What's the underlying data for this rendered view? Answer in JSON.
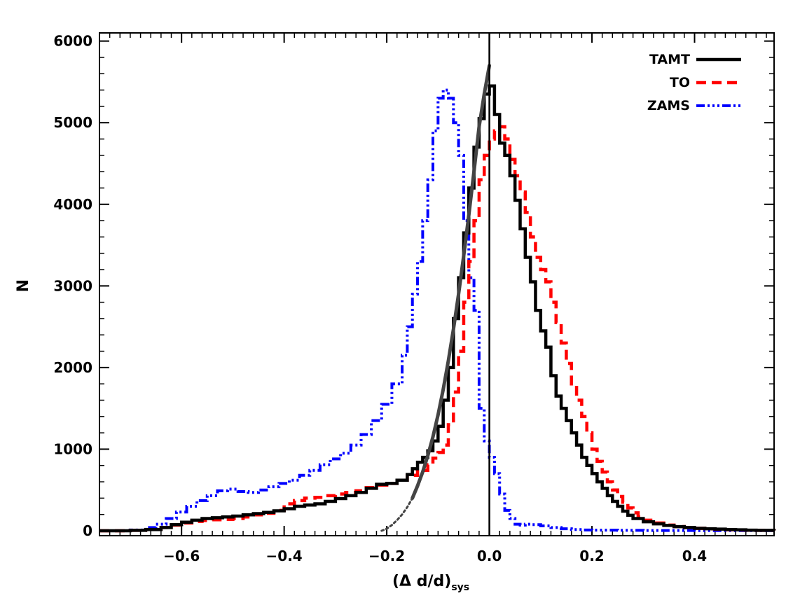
{
  "chart_data": {
    "type": "line",
    "subtype": "histogram-step",
    "xlabel": "(Δ d/d)",
    "xlabel_subscript": "sys",
    "ylabel": "N",
    "xlim": [
      -0.76,
      0.555
    ],
    "ylim": [
      -60,
      6100
    ],
    "xticks": [
      -0.6,
      -0.4,
      -0.2,
      0.0,
      0.2,
      0.4
    ],
    "xtick_labels": [
      "−0.6",
      "−0.4",
      "−0.2",
      "0.0",
      "0.2",
      "0.4"
    ],
    "yticks": [
      0,
      1000,
      2000,
      3000,
      4000,
      5000,
      6000
    ],
    "ytick_labels": [
      "0",
      "1000",
      "2000",
      "3000",
      "4000",
      "5000",
      "6000"
    ],
    "legend_position": "top-right",
    "vertical_line_x": 0.0,
    "series": [
      {
        "name": "TAMT",
        "color": "#000000",
        "style": "solid",
        "points": [
          [
            -0.76,
            0
          ],
          [
            -0.7,
            5
          ],
          [
            -0.67,
            15
          ],
          [
            -0.64,
            40
          ],
          [
            -0.62,
            75
          ],
          [
            -0.6,
            105
          ],
          [
            -0.58,
            130
          ],
          [
            -0.56,
            150
          ],
          [
            -0.54,
            160
          ],
          [
            -0.52,
            170
          ],
          [
            -0.5,
            180
          ],
          [
            -0.48,
            195
          ],
          [
            -0.46,
            210
          ],
          [
            -0.44,
            225
          ],
          [
            -0.42,
            245
          ],
          [
            -0.4,
            270
          ],
          [
            -0.38,
            300
          ],
          [
            -0.36,
            315
          ],
          [
            -0.34,
            330
          ],
          [
            -0.32,
            360
          ],
          [
            -0.3,
            395
          ],
          [
            -0.28,
            430
          ],
          [
            -0.26,
            470
          ],
          [
            -0.24,
            520
          ],
          [
            -0.22,
            570
          ],
          [
            -0.2,
            580
          ],
          [
            -0.18,
            620
          ],
          [
            -0.16,
            690
          ],
          [
            -0.15,
            760
          ],
          [
            -0.14,
            840
          ],
          [
            -0.13,
            900
          ],
          [
            -0.12,
            980
          ],
          [
            -0.11,
            1100
          ],
          [
            -0.1,
            1280
          ],
          [
            -0.09,
            1600
          ],
          [
            -0.08,
            2000
          ],
          [
            -0.07,
            2600
          ],
          [
            -0.06,
            3100
          ],
          [
            -0.05,
            3650
          ],
          [
            -0.04,
            4200
          ],
          [
            -0.03,
            4700
          ],
          [
            -0.02,
            5050
          ],
          [
            -0.01,
            5350
          ],
          [
            0.0,
            5450
          ],
          [
            0.01,
            5100
          ],
          [
            0.02,
            4750
          ],
          [
            0.03,
            4600
          ],
          [
            0.04,
            4350
          ],
          [
            0.05,
            4050
          ],
          [
            0.06,
            3700
          ],
          [
            0.07,
            3350
          ],
          [
            0.08,
            3050
          ],
          [
            0.09,
            2700
          ],
          [
            0.1,
            2450
          ],
          [
            0.11,
            2250
          ],
          [
            0.12,
            1900
          ],
          [
            0.13,
            1650
          ],
          [
            0.14,
            1500
          ],
          [
            0.15,
            1350
          ],
          [
            0.16,
            1200
          ],
          [
            0.17,
            1050
          ],
          [
            0.18,
            900
          ],
          [
            0.19,
            800
          ],
          [
            0.2,
            700
          ],
          [
            0.21,
            600
          ],
          [
            0.22,
            520
          ],
          [
            0.23,
            430
          ],
          [
            0.24,
            360
          ],
          [
            0.25,
            300
          ],
          [
            0.26,
            240
          ],
          [
            0.27,
            190
          ],
          [
            0.28,
            150
          ],
          [
            0.3,
            110
          ],
          [
            0.32,
            85
          ],
          [
            0.34,
            65
          ],
          [
            0.36,
            50
          ],
          [
            0.38,
            40
          ],
          [
            0.4,
            30
          ],
          [
            0.42,
            25
          ],
          [
            0.44,
            20
          ],
          [
            0.46,
            15
          ],
          [
            0.48,
            12
          ],
          [
            0.5,
            8
          ],
          [
            0.52,
            5
          ],
          [
            0.555,
            3
          ]
        ]
      },
      {
        "name": "TO",
        "color": "#ff0000",
        "style": "dashed",
        "points": [
          [
            -0.76,
            0
          ],
          [
            -0.7,
            5
          ],
          [
            -0.67,
            15
          ],
          [
            -0.64,
            40
          ],
          [
            -0.62,
            70
          ],
          [
            -0.6,
            95
          ],
          [
            -0.58,
            115
          ],
          [
            -0.56,
            125
          ],
          [
            -0.54,
            135
          ],
          [
            -0.52,
            140
          ],
          [
            -0.5,
            150
          ],
          [
            -0.48,
            170
          ],
          [
            -0.46,
            195
          ],
          [
            -0.44,
            215
          ],
          [
            -0.42,
            250
          ],
          [
            -0.4,
            330
          ],
          [
            -0.38,
            370
          ],
          [
            -0.36,
            400
          ],
          [
            -0.34,
            410
          ],
          [
            -0.32,
            430
          ],
          [
            -0.3,
            450
          ],
          [
            -0.28,
            470
          ],
          [
            -0.26,
            490
          ],
          [
            -0.24,
            530
          ],
          [
            -0.22,
            560
          ],
          [
            -0.2,
            580
          ],
          [
            -0.18,
            620
          ],
          [
            -0.16,
            680
          ],
          [
            -0.14,
            740
          ],
          [
            -0.12,
            810
          ],
          [
            -0.11,
            890
          ],
          [
            -0.1,
            960
          ],
          [
            -0.09,
            1050
          ],
          [
            -0.08,
            1300
          ],
          [
            -0.07,
            1700
          ],
          [
            -0.06,
            2200
          ],
          [
            -0.05,
            2800
          ],
          [
            -0.04,
            3300
          ],
          [
            -0.03,
            3800
          ],
          [
            -0.02,
            4300
          ],
          [
            -0.01,
            4600
          ],
          [
            0.0,
            4800
          ],
          [
            0.01,
            4900
          ],
          [
            0.02,
            4950
          ],
          [
            0.03,
            4800
          ],
          [
            0.04,
            4550
          ],
          [
            0.05,
            4350
          ],
          [
            0.06,
            4150
          ],
          [
            0.07,
            3900
          ],
          [
            0.08,
            3600
          ],
          [
            0.09,
            3350
          ],
          [
            0.1,
            3200
          ],
          [
            0.11,
            3050
          ],
          [
            0.12,
            2800
          ],
          [
            0.13,
            2550
          ],
          [
            0.14,
            2300
          ],
          [
            0.15,
            2050
          ],
          [
            0.16,
            1800
          ],
          [
            0.17,
            1600
          ],
          [
            0.18,
            1400
          ],
          [
            0.19,
            1200
          ],
          [
            0.2,
            1000
          ],
          [
            0.21,
            850
          ],
          [
            0.22,
            720
          ],
          [
            0.23,
            600
          ],
          [
            0.24,
            500
          ],
          [
            0.25,
            420
          ],
          [
            0.26,
            350
          ],
          [
            0.27,
            280
          ],
          [
            0.28,
            220
          ],
          [
            0.29,
            170
          ],
          [
            0.3,
            130
          ],
          [
            0.32,
            95
          ],
          [
            0.34,
            70
          ],
          [
            0.36,
            52
          ],
          [
            0.38,
            40
          ],
          [
            0.4,
            30
          ],
          [
            0.42,
            24
          ],
          [
            0.44,
            18
          ],
          [
            0.46,
            13
          ],
          [
            0.48,
            10
          ],
          [
            0.5,
            7
          ],
          [
            0.52,
            5
          ],
          [
            0.555,
            3
          ]
        ]
      },
      {
        "name": "ZAMS",
        "color": "#0000ff",
        "style": "dash-dot-dot",
        "points": [
          [
            -0.76,
            0
          ],
          [
            -0.7,
            10
          ],
          [
            -0.67,
            40
          ],
          [
            -0.65,
            80
          ],
          [
            -0.63,
            150
          ],
          [
            -0.61,
            230
          ],
          [
            -0.59,
            300
          ],
          [
            -0.57,
            370
          ],
          [
            -0.55,
            430
          ],
          [
            -0.53,
            490
          ],
          [
            -0.51,
            510
          ],
          [
            -0.49,
            480
          ],
          [
            -0.47,
            470
          ],
          [
            -0.45,
            500
          ],
          [
            -0.43,
            540
          ],
          [
            -0.41,
            580
          ],
          [
            -0.39,
            620
          ],
          [
            -0.37,
            680
          ],
          [
            -0.35,
            740
          ],
          [
            -0.33,
            810
          ],
          [
            -0.31,
            880
          ],
          [
            -0.29,
            950
          ],
          [
            -0.27,
            1050
          ],
          [
            -0.25,
            1180
          ],
          [
            -0.23,
            1350
          ],
          [
            -0.21,
            1550
          ],
          [
            -0.19,
            1800
          ],
          [
            -0.17,
            2150
          ],
          [
            -0.16,
            2500
          ],
          [
            -0.15,
            2900
          ],
          [
            -0.14,
            3300
          ],
          [
            -0.13,
            3800
          ],
          [
            -0.12,
            4300
          ],
          [
            -0.11,
            4900
          ],
          [
            -0.1,
            5300
          ],
          [
            -0.09,
            5400
          ],
          [
            -0.08,
            5300
          ],
          [
            -0.07,
            5000
          ],
          [
            -0.06,
            4600
          ],
          [
            -0.05,
            3800
          ],
          [
            -0.04,
            3100
          ],
          [
            -0.03,
            2700
          ],
          [
            -0.02,
            1500
          ],
          [
            -0.01,
            1100
          ],
          [
            0.0,
            900
          ],
          [
            0.01,
            700
          ],
          [
            0.02,
            450
          ],
          [
            0.03,
            250
          ],
          [
            0.04,
            150
          ],
          [
            0.05,
            80
          ],
          [
            0.06,
            70
          ],
          [
            0.07,
            80
          ],
          [
            0.08,
            75
          ],
          [
            0.1,
            60
          ],
          [
            0.12,
            40
          ],
          [
            0.14,
            25
          ],
          [
            0.16,
            15
          ],
          [
            0.18,
            10
          ],
          [
            0.2,
            8
          ],
          [
            0.25,
            5
          ],
          [
            0.3,
            3
          ],
          [
            0.4,
            2
          ],
          [
            0.555,
            0
          ]
        ]
      },
      {
        "name": "fit",
        "color": "#444444",
        "style": "solid-thick",
        "points": [
          [
            -0.15,
            400
          ],
          [
            -0.14,
            550
          ],
          [
            -0.13,
            720
          ],
          [
            -0.12,
            920
          ],
          [
            -0.11,
            1150
          ],
          [
            -0.1,
            1420
          ],
          [
            -0.09,
            1730
          ],
          [
            -0.08,
            2080
          ],
          [
            -0.07,
            2470
          ],
          [
            -0.06,
            2900
          ],
          [
            -0.05,
            3370
          ],
          [
            -0.04,
            3870
          ],
          [
            -0.03,
            4400
          ],
          [
            -0.02,
            4950
          ],
          [
            -0.01,
            5350
          ],
          [
            0.0,
            5700
          ]
        ]
      },
      {
        "name": "fit-extrapolation",
        "color": "#444444",
        "style": "dotted",
        "points": [
          [
            -0.21,
            0
          ],
          [
            -0.2,
            25
          ],
          [
            -0.19,
            70
          ],
          [
            -0.18,
            130
          ],
          [
            -0.17,
            200
          ],
          [
            -0.16,
            290
          ],
          [
            -0.15,
            400
          ]
        ]
      }
    ]
  },
  "legend": {
    "items": [
      {
        "label": "TAMT",
        "color": "#000000",
        "style": "solid"
      },
      {
        "label": "TO",
        "color": "#ff0000",
        "style": "dashed"
      },
      {
        "label": "ZAMS",
        "color": "#0000ff",
        "style": "dash-dot-dot"
      }
    ]
  }
}
